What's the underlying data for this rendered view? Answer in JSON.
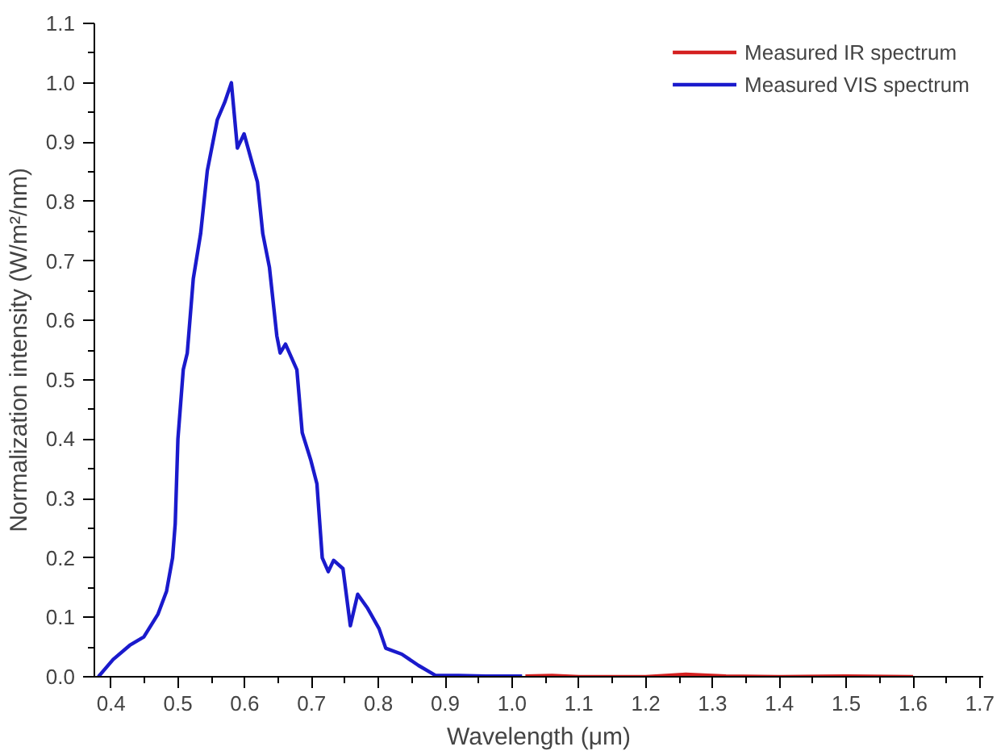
{
  "chart_data": {
    "type": "line",
    "xlabel": "Wavelength (μm)",
    "ylabel": "Normalization intensity (W/m²/nm)",
    "xlim": [
      0.375,
      1.705
    ],
    "ylim": [
      0,
      1.1
    ],
    "xticks": [
      0.4,
      0.5,
      0.6,
      0.7,
      0.8,
      0.9,
      {
        "value": 1,
        "label": "1.0"
      },
      1.1,
      1.2,
      1.3,
      1.4,
      1.5,
      1.6,
      1.7
    ],
    "yticks": [
      {
        "value": 0,
        "label": "0.0"
      },
      0.1,
      0.2,
      0.3,
      0.4,
      0.5,
      0.6,
      0.7,
      0.8,
      0.9,
      {
        "value": 1,
        "label": "1.0"
      },
      1.1
    ],
    "grid": false,
    "legend": "top right",
    "line_style": "solid",
    "marker": "none",
    "series": [
      {
        "name": "Measured IR spectrum",
        "color": "#d42020",
        "x": [
          1.02,
          1.06,
          1.1,
          1.2,
          1.26,
          1.32,
          1.4,
          1.5,
          1.6
        ],
        "values": [
          0.001,
          0.002,
          0.0,
          0.0,
          0.004,
          0.001,
          0.0,
          0.001,
          0.0
        ]
      },
      {
        "name": "Measured VIS spectrum",
        "color": "#1a1acc",
        "x": [
          0.381,
          0.403,
          0.428,
          0.449,
          0.47,
          0.483,
          0.492,
          0.496,
          0.5,
          0.508,
          0.514,
          0.523,
          0.534,
          0.544,
          0.559,
          0.57,
          0.58,
          0.589,
          0.599,
          0.619,
          0.627,
          0.637,
          0.648,
          0.653,
          0.661,
          0.678,
          0.686,
          0.699,
          0.708,
          0.716,
          0.725,
          0.733,
          0.747,
          0.758,
          0.769,
          0.784,
          0.801,
          0.811,
          0.835,
          0.86,
          0.886,
          0.92,
          0.96,
          1.015
        ],
        "values": [
          0.0,
          0.029,
          0.053,
          0.067,
          0.105,
          0.144,
          0.2,
          0.258,
          0.4,
          0.517,
          0.545,
          0.67,
          0.746,
          0.852,
          0.938,
          0.967,
          1.0,
          0.89,
          0.914,
          0.833,
          0.746,
          0.689,
          0.574,
          0.545,
          0.56,
          0.517,
          0.411,
          0.364,
          0.325,
          0.2,
          0.177,
          0.196,
          0.182,
          0.086,
          0.139,
          0.115,
          0.081,
          0.048,
          0.038,
          0.019,
          0.002,
          0.002,
          0.001,
          0.001
        ]
      }
    ]
  }
}
